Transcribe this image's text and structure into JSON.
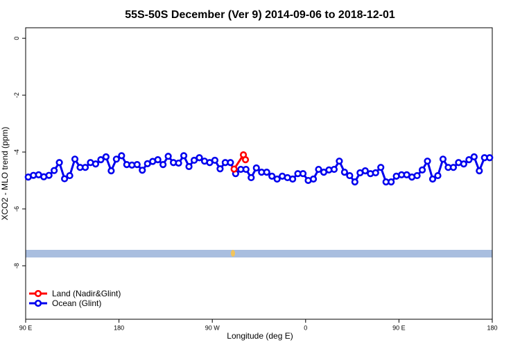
{
  "chart_data": {
    "type": "line",
    "title": "55S-50S December (Ver 9)   2014-09-06 to 2018-12-01",
    "xlabel": "Longitude (deg E)",
    "ylabel": "XCO2 - MLO trend (ppm)",
    "xlim": [
      90,
      540
    ],
    "xticks": [
      {
        "value": 90,
        "label": "90 E"
      },
      {
        "value": 180,
        "label": "180"
      },
      {
        "value": 270,
        "label": "90 W"
      },
      {
        "value": 360,
        "label": "0"
      },
      {
        "value": 450,
        "label": "90 E"
      },
      {
        "value": 540,
        "label": "180"
      }
    ],
    "ylim": [
      -9.88,
      0.37
    ],
    "yticks": [
      0,
      -2,
      -4,
      -6,
      -8
    ],
    "legend": "bottom-left",
    "series": [
      {
        "name": "Land (Nadir&Glint)",
        "color": "#ff0000",
        "x": [
          291,
          300,
          302
        ],
        "values": [
          -4.6,
          -4.1,
          -4.27
        ]
      },
      {
        "name": "Ocean (Glint)",
        "color": "#0000ee",
        "x": [
          92.5,
          97.5,
          102.5,
          107.5,
          112.5,
          117.5,
          122.5,
          127.5,
          132.5,
          137.5,
          142.5,
          147.5,
          152.5,
          157.5,
          162.5,
          167.5,
          172.5,
          177.5,
          182.5,
          187.5,
          192.5,
          197.5,
          202.5,
          207.5,
          212.5,
          217.5,
          222.5,
          227.5,
          232.5,
          237.5,
          242.5,
          247.5,
          252.5,
          257.5,
          262.5,
          267.5,
          272.5,
          277.5,
          282.5,
          287.5,
          292.5,
          297.5,
          302.5,
          307.5,
          312.5,
          317.5,
          322.5,
          327.5,
          332.5,
          337.5,
          342.5,
          347.5,
          352.5,
          357.5,
          362.5,
          367.5,
          372.5,
          377.5,
          382.5,
          387.5,
          392.5,
          397.5,
          402.5,
          407.5,
          412.5,
          417.5,
          422.5,
          427.5,
          432.5,
          437.5,
          442.5,
          447.5,
          452.5,
          457.5,
          462.5,
          467.5,
          472.5,
          477.5,
          482.5,
          487.5,
          492.5,
          497.5,
          502.5,
          507.5,
          512.5,
          517.5,
          522.5,
          527.5,
          532.5,
          537.5
        ],
        "values": [
          -4.88,
          -4.82,
          -4.8,
          -4.87,
          -4.82,
          -4.65,
          -4.37,
          -4.94,
          -4.83,
          -4.25,
          -4.54,
          -4.54,
          -4.37,
          -4.42,
          -4.27,
          -4.17,
          -4.66,
          -4.25,
          -4.13,
          -4.44,
          -4.46,
          -4.44,
          -4.64,
          -4.41,
          -4.33,
          -4.27,
          -4.44,
          -4.15,
          -4.37,
          -4.39,
          -4.13,
          -4.51,
          -4.29,
          -4.2,
          -4.32,
          -4.37,
          -4.29,
          -4.59,
          -4.37,
          -4.37,
          -4.76,
          -4.61,
          -4.61,
          -4.9,
          -4.56,
          -4.71,
          -4.71,
          -4.85,
          -4.95,
          -4.85,
          -4.9,
          -4.95,
          -4.76,
          -4.76,
          -5.0,
          -4.95,
          -4.61,
          -4.71,
          -4.63,
          -4.61,
          -4.32,
          -4.71,
          -4.83,
          -5.05,
          -4.73,
          -4.66,
          -4.76,
          -4.73,
          -4.54,
          -5.05,
          -5.05,
          -4.85,
          -4.8,
          -4.8,
          -4.88,
          -4.83,
          -4.63,
          -4.32,
          -4.95,
          -4.83,
          -4.25,
          -4.54,
          -4.54,
          -4.37,
          -4.42,
          -4.27,
          -4.17,
          -4.66,
          -4.2,
          -4.2
        ]
      }
    ]
  }
}
